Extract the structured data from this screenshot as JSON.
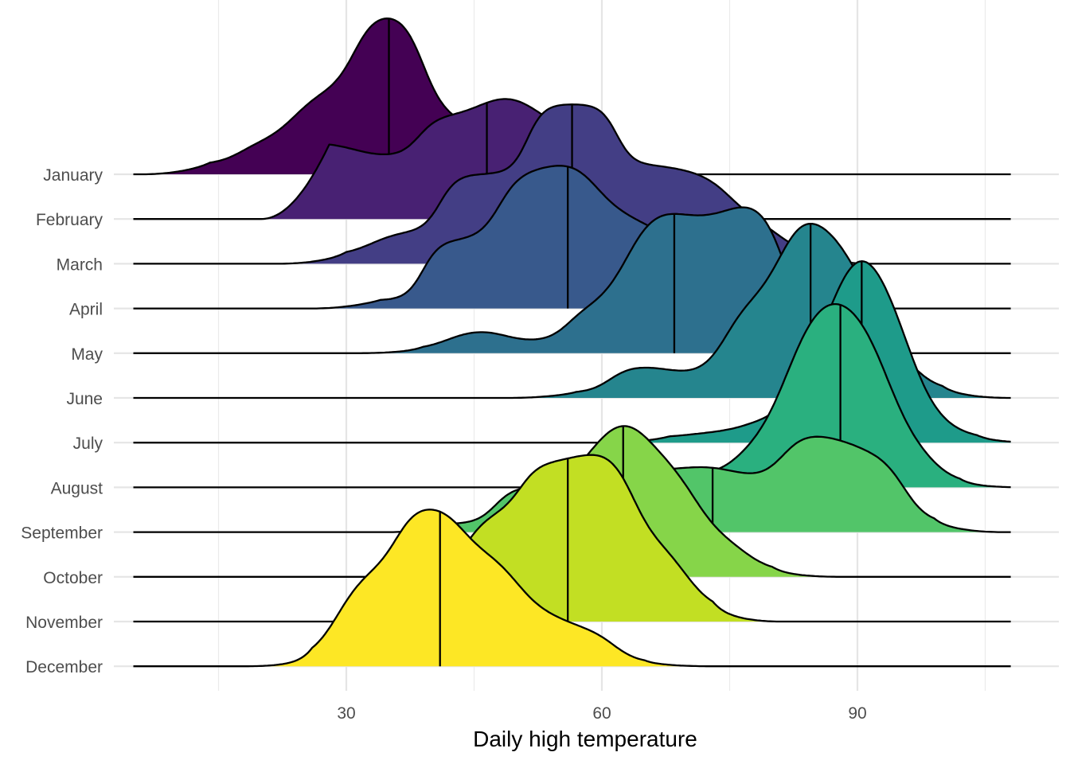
{
  "chart_data": {
    "type": "ridgeline",
    "title": "",
    "xlabel": "Daily high temperature",
    "ylabel": "",
    "xlim": [
      5,
      108
    ],
    "x_ticks": [
      30,
      60,
      90
    ],
    "x_tick_labels": [
      "30",
      "60",
      "90"
    ],
    "grid": true,
    "legend": "none",
    "categories": [
      "January",
      "February",
      "March",
      "April",
      "May",
      "June",
      "July",
      "August",
      "September",
      "October",
      "November",
      "December"
    ],
    "series": [
      {
        "name": "January",
        "color": "#440154",
        "median": 35,
        "peak": [
          [
            14,
            0.06
          ],
          [
            21,
            0.2
          ],
          [
            27,
            0.52
          ],
          [
            35,
            1.0
          ],
          [
            43,
            0.36
          ],
          [
            49,
            0.08
          ]
        ]
      },
      {
        "name": "February",
        "color": "#482173",
        "median": 46.5,
        "peak": [
          [
            28,
            0.47
          ],
          [
            34,
            0.38
          ],
          [
            43,
            0.63
          ],
          [
            49,
            0.78
          ],
          [
            55,
            0.58
          ],
          [
            61,
            0.3
          ],
          [
            67,
            0.08
          ]
        ]
      },
      {
        "name": "March",
        "color": "#433e85",
        "median": 56.5,
        "peak": [
          [
            30,
            0.05
          ],
          [
            36,
            0.2
          ],
          [
            46,
            0.55
          ],
          [
            56.5,
            0.98
          ],
          [
            67,
            0.61
          ],
          [
            72,
            0.55
          ],
          [
            78,
            0.27
          ],
          [
            84,
            0.05
          ]
        ]
      },
      {
        "name": "April",
        "color": "#38598c",
        "median": 56,
        "peak": [
          [
            34,
            0.05
          ],
          [
            44,
            0.42
          ],
          [
            52,
            0.82
          ],
          [
            56,
            0.94
          ],
          [
            62,
            0.6
          ],
          [
            67,
            0.46
          ],
          [
            73,
            0.27
          ],
          [
            78,
            0.06
          ]
        ]
      },
      {
        "name": "May",
        "color": "#2d708e",
        "median": 68.5,
        "peak": [
          [
            39,
            0.02
          ],
          [
            45,
            0.15
          ],
          [
            52,
            0.07
          ],
          [
            60,
            0.28
          ],
          [
            66,
            0.9
          ],
          [
            72,
            0.82
          ],
          [
            78,
            0.95
          ],
          [
            85,
            0.12
          ]
        ]
      },
      {
        "name": "June",
        "color": "#25858e",
        "median": 84.5,
        "peak": [
          [
            57,
            0.03
          ],
          [
            65,
            0.2
          ],
          [
            71,
            0.14
          ],
          [
            78,
            0.6
          ],
          [
            84.5,
            1.2
          ],
          [
            89,
            0.9
          ],
          [
            94,
            0.25
          ],
          [
            100,
            0.04
          ]
        ]
      },
      {
        "name": "July",
        "color": "#1e9b8a",
        "median": 90.5,
        "peak": [
          [
            68,
            0.03
          ],
          [
            73,
            0.07
          ],
          [
            80,
            0.13
          ],
          [
            86,
            0.5
          ],
          [
            90.5,
            1.6
          ],
          [
            94,
            0.7
          ],
          [
            99,
            0.12
          ],
          [
            104,
            0.02
          ]
        ]
      },
      {
        "name": "August",
        "color": "#2ab07f",
        "median": 88,
        "peak": [
          [
            66,
            0.07
          ],
          [
            72,
            0.08
          ],
          [
            79,
            0.22
          ],
          [
            84,
            1.0
          ],
          [
            88,
            1.37
          ],
          [
            91,
            0.9
          ],
          [
            96,
            0.24
          ],
          [
            102,
            0.02
          ]
        ]
      },
      {
        "name": "September",
        "color": "#52c569",
        "median": 73,
        "peak": [
          [
            43,
            0.05
          ],
          [
            52,
            0.28
          ],
          [
            60,
            0.34
          ],
          [
            68,
            0.38
          ],
          [
            73,
            0.42
          ],
          [
            78,
            0.32
          ],
          [
            85,
            0.63
          ],
          [
            88,
            0.57
          ],
          [
            92,
            0.45
          ],
          [
            99,
            0.05
          ]
        ]
      },
      {
        "name": "October",
        "color": "#86d549",
        "median": 62.5,
        "peak": [
          [
            44,
            0.03
          ],
          [
            51,
            0.17
          ],
          [
            57,
            0.66
          ],
          [
            62.5,
            1.04
          ],
          [
            68,
            0.69
          ],
          [
            74,
            0.24
          ],
          [
            80,
            0.03
          ]
        ]
      },
      {
        "name": "November",
        "color": "#c2df23",
        "median": 56,
        "peak": [
          [
            40,
            0.08
          ],
          [
            46,
            0.68
          ],
          [
            55,
            0.97
          ],
          [
            60,
            1.07
          ],
          [
            67,
            0.49
          ],
          [
            73,
            0.06
          ]
        ]
      },
      {
        "name": "December",
        "color": "#fde725",
        "median": 41,
        "peak": [
          [
            26,
            0.03
          ],
          [
            32,
            0.6
          ],
          [
            40,
            1.0
          ],
          [
            47,
            0.7
          ],
          [
            53,
            0.34
          ],
          [
            58,
            0.22
          ],
          [
            65,
            0.02
          ]
        ]
      }
    ]
  }
}
